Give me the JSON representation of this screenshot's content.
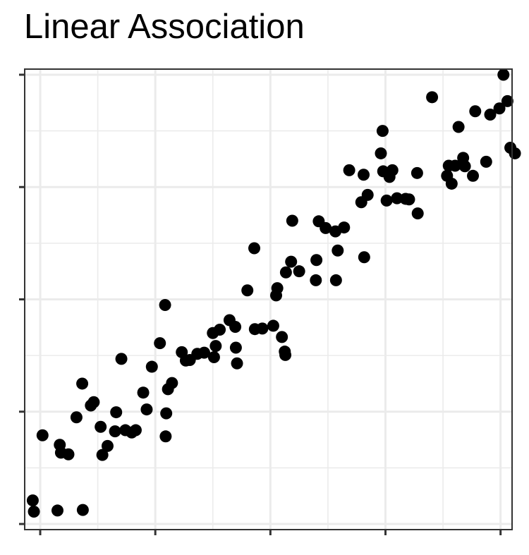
{
  "chart_data": {
    "type": "scatter",
    "title": "Linear Association",
    "xlabel": "",
    "ylabel": "",
    "xlim": [
      -0.27,
      8.2
    ],
    "ylim": [
      -0.1,
      8.1
    ],
    "xticks": [
      0,
      2,
      4,
      6,
      8
    ],
    "yticks": [
      0,
      2,
      4,
      6,
      8
    ],
    "x_minor_grid": [
      1,
      3,
      5,
      7
    ],
    "y_minor_grid": [
      1,
      3,
      5,
      7
    ],
    "grid": true,
    "tick_labels_visible": false,
    "point_color": "#000000",
    "panel_border_color": "#333333",
    "grid_color": "#ebebeb",
    "series": [
      {
        "points": [
          [
            -0.13,
            0.42
          ],
          [
            -0.11,
            0.22
          ],
          [
            0.04,
            1.58
          ],
          [
            0.3,
            0.24
          ],
          [
            0.34,
            1.41
          ],
          [
            0.36,
            1.27
          ],
          [
            0.49,
            1.24
          ],
          [
            0.63,
            1.9
          ],
          [
            0.73,
            2.5
          ],
          [
            0.74,
            0.25
          ],
          [
            0.88,
            2.11
          ],
          [
            0.93,
            2.17
          ],
          [
            1.05,
            1.73
          ],
          [
            1.08,
            1.23
          ],
          [
            1.17,
            1.39
          ],
          [
            1.3,
            1.65
          ],
          [
            1.32,
            1.99
          ],
          [
            1.41,
            2.94
          ],
          [
            1.48,
            1.67
          ],
          [
            1.59,
            1.63
          ],
          [
            1.66,
            1.67
          ],
          [
            1.79,
            2.34
          ],
          [
            1.85,
            2.04
          ],
          [
            1.94,
            2.8
          ],
          [
            2.08,
            3.22
          ],
          [
            2.17,
            3.9
          ],
          [
            2.18,
            1.56
          ],
          [
            2.19,
            1.97
          ],
          [
            2.22,
            2.4
          ],
          [
            2.29,
            2.51
          ],
          [
            2.46,
            3.06
          ],
          [
            2.53,
            2.91
          ],
          [
            2.6,
            2.92
          ],
          [
            2.73,
            3.03
          ],
          [
            2.85,
            3.05
          ],
          [
            3.0,
            3.4
          ],
          [
            3.02,
            2.97
          ],
          [
            3.05,
            3.17
          ],
          [
            3.12,
            3.46
          ],
          [
            3.29,
            3.63
          ],
          [
            3.39,
            3.51
          ],
          [
            3.4,
            3.14
          ],
          [
            3.42,
            2.86
          ],
          [
            3.6,
            4.16
          ],
          [
            3.72,
            4.91
          ],
          [
            3.73,
            3.47
          ],
          [
            3.86,
            3.48
          ],
          [
            4.05,
            3.53
          ],
          [
            4.1,
            4.07
          ],
          [
            4.12,
            4.2
          ],
          [
            4.2,
            3.33
          ],
          [
            4.25,
            3.07
          ],
          [
            4.26,
            3.01
          ],
          [
            4.27,
            4.48
          ],
          [
            4.36,
            4.67
          ],
          [
            4.38,
            5.4
          ],
          [
            4.5,
            4.5
          ],
          [
            4.79,
            4.34
          ],
          [
            4.8,
            4.7
          ],
          [
            4.84,
            5.39
          ],
          [
            4.96,
            5.27
          ],
          [
            5.13,
            5.21
          ],
          [
            5.14,
            4.34
          ],
          [
            5.17,
            4.87
          ],
          [
            5.28,
            5.28
          ],
          [
            5.37,
            6.3
          ],
          [
            5.58,
            5.73
          ],
          [
            5.62,
            6.22
          ],
          [
            5.63,
            4.75
          ],
          [
            5.69,
            5.86
          ],
          [
            5.92,
            6.6
          ],
          [
            5.95,
            7.0
          ],
          [
            5.96,
            6.28
          ],
          [
            6.02,
            5.76
          ],
          [
            6.07,
            6.18
          ],
          [
            6.12,
            6.3
          ],
          [
            6.2,
            5.8
          ],
          [
            6.35,
            5.79
          ],
          [
            6.41,
            5.78
          ],
          [
            6.55,
            6.25
          ],
          [
            6.56,
            5.53
          ],
          [
            6.81,
            7.6
          ],
          [
            7.07,
            6.2
          ],
          [
            7.1,
            6.38
          ],
          [
            7.15,
            6.06
          ],
          [
            7.21,
            6.38
          ],
          [
            7.27,
            7.07
          ],
          [
            7.35,
            6.52
          ],
          [
            7.38,
            6.37
          ],
          [
            7.52,
            6.2
          ],
          [
            7.56,
            7.35
          ],
          [
            7.75,
            6.45
          ],
          [
            7.82,
            7.29
          ],
          [
            7.98,
            7.4
          ],
          [
            8.05,
            8.0
          ],
          [
            8.12,
            7.53
          ],
          [
            8.17,
            6.7
          ],
          [
            8.25,
            6.6
          ]
        ]
      }
    ]
  }
}
